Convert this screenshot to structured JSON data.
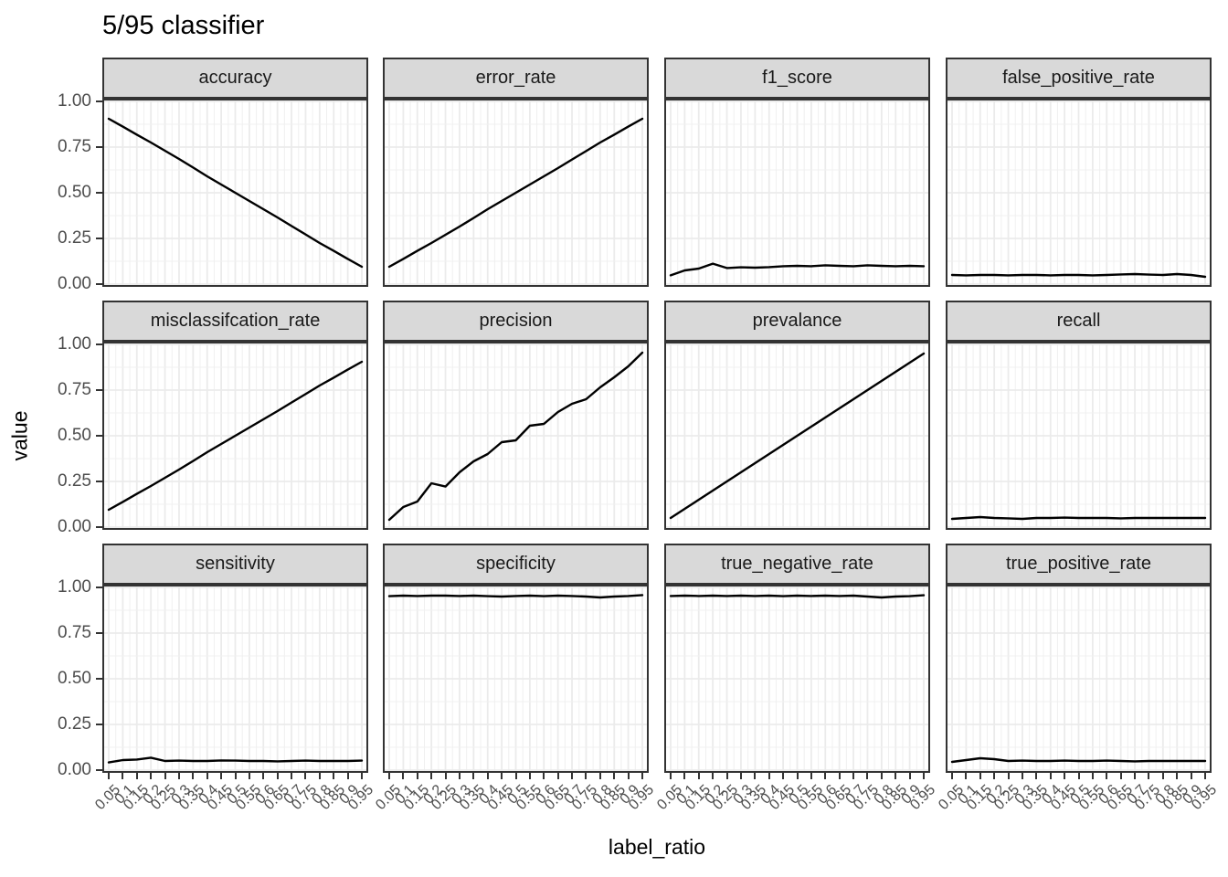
{
  "title": "5/95 classifier",
  "axes": {
    "x_label": "label_ratio",
    "y_label": "value",
    "x_tick_labels": [
      "0.05",
      "0.1",
      "0.15",
      "0.2",
      "0.25",
      "0.3",
      "0.35",
      "0.4",
      "0.45",
      "0.5",
      "0.55",
      "0.6",
      "0.65",
      "0.7",
      "0.75",
      "0.8",
      "0.85",
      "0.9",
      "0.95"
    ],
    "y_tick_labels": [
      "1.00",
      "0.75",
      "0.50",
      "0.25",
      "0.00"
    ]
  },
  "colors": {
    "strip_fill": "#d9d9d9",
    "panel_border": "#333333",
    "grid_major": "#ebebeb",
    "grid_minor": "#f0f0f0",
    "line": "#000000",
    "axis_text": "#4d4d4d"
  },
  "chart_data": {
    "type": "line",
    "title": "5/95 classifier",
    "xlabel": "label_ratio",
    "ylabel": "value",
    "x": [
      0.05,
      0.1,
      0.15,
      0.2,
      0.25,
      0.3,
      0.35,
      0.4,
      0.45,
      0.5,
      0.55,
      0.6,
      0.65,
      0.7,
      0.75,
      0.8,
      0.85,
      0.9,
      0.95
    ],
    "ylim": [
      0,
      1
    ],
    "y_breaks": [
      0,
      0.25,
      0.5,
      0.75,
      1.0
    ],
    "grid": true,
    "legend_position": "none",
    "facet_layout": {
      "rows": 3,
      "cols": 4
    },
    "facets": [
      {
        "name": "accuracy",
        "values": [
          0.905,
          0.862,
          0.818,
          0.775,
          0.73,
          0.685,
          0.638,
          0.59,
          0.545,
          0.5,
          0.455,
          0.41,
          0.365,
          0.318,
          0.272,
          0.225,
          0.182,
          0.138,
          0.095
        ]
      },
      {
        "name": "error_rate",
        "values": [
          0.095,
          0.138,
          0.182,
          0.225,
          0.27,
          0.315,
          0.362,
          0.41,
          0.455,
          0.5,
          0.545,
          0.59,
          0.635,
          0.682,
          0.728,
          0.775,
          0.818,
          0.862,
          0.905
        ]
      },
      {
        "name": "f1_score",
        "values": [
          0.048,
          0.075,
          0.085,
          0.112,
          0.088,
          0.092,
          0.09,
          0.093,
          0.098,
          0.1,
          0.098,
          0.103,
          0.1,
          0.098,
          0.103,
          0.1,
          0.098,
          0.1,
          0.098
        ]
      },
      {
        "name": "false_positive_rate",
        "values": [
          0.05,
          0.048,
          0.05,
          0.05,
          0.048,
          0.05,
          0.05,
          0.048,
          0.05,
          0.05,
          0.048,
          0.05,
          0.053,
          0.055,
          0.052,
          0.05,
          0.055,
          0.05,
          0.04
        ]
      },
      {
        "name": "misclassifcation_rate",
        "values": [
          0.095,
          0.138,
          0.182,
          0.225,
          0.27,
          0.315,
          0.362,
          0.41,
          0.455,
          0.5,
          0.545,
          0.59,
          0.635,
          0.682,
          0.728,
          0.775,
          0.818,
          0.862,
          0.905
        ]
      },
      {
        "name": "precision",
        "values": [
          0.04,
          0.11,
          0.14,
          0.24,
          0.222,
          0.3,
          0.36,
          0.4,
          0.465,
          0.475,
          0.555,
          0.565,
          0.63,
          0.675,
          0.7,
          0.765,
          0.82,
          0.88,
          0.955
        ]
      },
      {
        "name": "prevalance",
        "values": [
          0.05,
          0.1,
          0.15,
          0.2,
          0.25,
          0.3,
          0.35,
          0.4,
          0.45,
          0.5,
          0.55,
          0.6,
          0.65,
          0.7,
          0.75,
          0.8,
          0.85,
          0.9,
          0.95
        ]
      },
      {
        "name": "recall",
        "values": [
          0.045,
          0.05,
          0.055,
          0.05,
          0.048,
          0.045,
          0.05,
          0.05,
          0.052,
          0.05,
          0.05,
          0.05,
          0.048,
          0.05,
          0.05,
          0.05,
          0.05,
          0.05,
          0.05
        ]
      },
      {
        "name": "sensitivity",
        "values": [
          0.042,
          0.055,
          0.058,
          0.068,
          0.05,
          0.052,
          0.05,
          0.05,
          0.053,
          0.052,
          0.05,
          0.05,
          0.048,
          0.05,
          0.052,
          0.05,
          0.05,
          0.05,
          0.052
        ]
      },
      {
        "name": "specificity",
        "values": [
          0.952,
          0.955,
          0.953,
          0.955,
          0.955,
          0.953,
          0.955,
          0.952,
          0.95,
          0.953,
          0.955,
          0.952,
          0.955,
          0.953,
          0.95,
          0.945,
          0.95,
          0.953,
          0.958
        ]
      },
      {
        "name": "true_negative_rate",
        "values": [
          0.953,
          0.955,
          0.953,
          0.955,
          0.953,
          0.955,
          0.953,
          0.955,
          0.952,
          0.955,
          0.953,
          0.955,
          0.953,
          0.955,
          0.95,
          0.945,
          0.95,
          0.952,
          0.957
        ]
      },
      {
        "name": "true_positive_rate",
        "values": [
          0.045,
          0.055,
          0.065,
          0.06,
          0.05,
          0.052,
          0.05,
          0.05,
          0.052,
          0.05,
          0.05,
          0.052,
          0.05,
          0.048,
          0.05,
          0.05,
          0.05,
          0.05,
          0.05
        ]
      }
    ]
  }
}
